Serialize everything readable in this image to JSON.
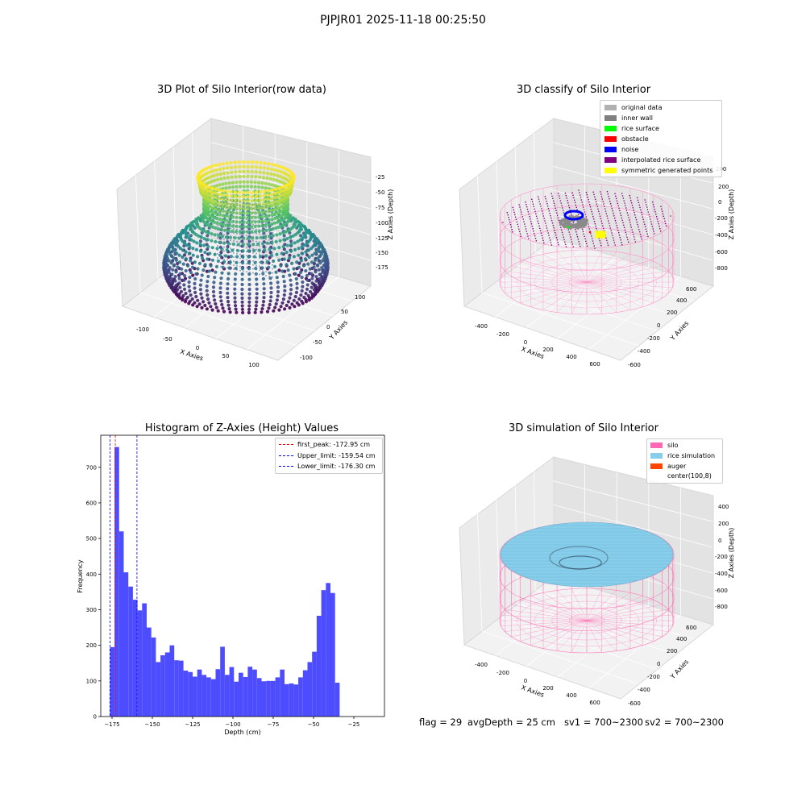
{
  "figure": {
    "title": "PJPJR01 2025-11-18 00:25:50",
    "footer": {
      "flag": "flag = 29",
      "avg_depth": "avgDepth = 25 cm",
      "sv1": "sv1 = 700~2300",
      "sv2": "sv2 = 700~2300"
    }
  },
  "chart_data": [
    {
      "type": "scatter",
      "title": "3D Plot of Silo Interior(row data)",
      "xlabel": "X Axies",
      "ylabel": "Y Axies",
      "zlabel": "Z Axies (Depth)",
      "x_ticks": [
        "-100",
        "-50",
        "0",
        "50",
        "100"
      ],
      "y_ticks": [
        "-100",
        "-50",
        "0",
        "50",
        "100"
      ],
      "z_ticks": [
        "-25",
        "-50",
        "-75",
        "-100",
        "-125",
        "-150",
        "-175"
      ],
      "colormap": "viridis"
    },
    {
      "type": "scatter",
      "title": "3D classify of Silo Interior",
      "xlabel": "X Axies",
      "ylabel": "Y Axies",
      "zlabel": "Z Axies (Depth)",
      "x_ticks": [
        "-400",
        "-200",
        "0",
        "200",
        "400",
        "600"
      ],
      "y_ticks": [
        "-600",
        "-400",
        "-200",
        "0",
        "200",
        "400",
        "600"
      ],
      "z_ticks": [
        "200",
        "0",
        "-200",
        "-400",
        "-600",
        "-800"
      ],
      "legend_position": "top-right",
      "legend": [
        {
          "label": "original data",
          "color": "#b0b0b0"
        },
        {
          "label": "inner wall",
          "color": "#808080"
        },
        {
          "label": "rice surface",
          "color": "#00ff00"
        },
        {
          "label": "obstacle",
          "color": "#ff0000"
        },
        {
          "label": "noise",
          "color": "#0000ff"
        },
        {
          "label": "interpolated rice surface",
          "color": "#800080"
        },
        {
          "label": "symmetric generated points",
          "color": "#ffff00"
        }
      ]
    },
    {
      "type": "bar",
      "title": "Histogram of Z-Axies (Height) Values",
      "xlabel": "Depth (cm)",
      "ylabel": "Frequency",
      "xlim": [
        -182,
        -6
      ],
      "ylim": [
        0,
        790
      ],
      "x_ticks": [
        -175,
        -150,
        -125,
        -100,
        -75,
        -50,
        -25
      ],
      "y_ticks": [
        0,
        100,
        200,
        300,
        400,
        500,
        600,
        700
      ],
      "bar_color": "#4d4dff",
      "bin_start": -176.3,
      "bin_width": 2.85,
      "values": [
        195,
        757,
        520,
        405,
        365,
        328,
        298,
        318,
        250,
        222,
        153,
        172,
        180,
        200,
        158,
        157,
        129,
        125,
        112,
        132,
        117,
        110,
        105,
        133,
        196,
        117,
        139,
        98,
        123,
        111,
        140,
        132,
        108,
        99,
        100,
        100,
        110,
        132,
        91,
        93,
        90,
        110,
        130,
        153,
        182,
        283,
        355,
        375,
        347,
        95
      ],
      "lines": [
        {
          "label": "first_peak: -172.95 cm",
          "x": -172.95,
          "color": "#ff0000"
        },
        {
          "label": "Upper_limit: -159.54 cm",
          "x": -159.54,
          "color": "#0000ff"
        },
        {
          "label": "Lower_limit: -176.30 cm",
          "x": -176.3,
          "color": "#0000ff"
        }
      ],
      "legend_position": "top-right"
    },
    {
      "type": "area",
      "title": "3D simulation of Silo Interior",
      "xlabel": "X Axies",
      "ylabel": "Y Axies",
      "zlabel": "Z Axies (Depth)",
      "x_ticks": [
        "-400",
        "-200",
        "0",
        "200",
        "400",
        "600"
      ],
      "y_ticks": [
        "-600",
        "-400",
        "-200",
        "0",
        "200",
        "400",
        "600"
      ],
      "z_ticks": [
        "400",
        "200",
        "0",
        "-200",
        "-400",
        "-600",
        "-800"
      ],
      "legend_position": "top-right",
      "legend": [
        {
          "label": "silo",
          "color": "#ff69b4"
        },
        {
          "label": "rice simulation",
          "color": "#87ceeb"
        },
        {
          "label": "auger",
          "color": "#ff4500"
        },
        {
          "label": "center(100,8)",
          "color": "#ffffff"
        }
      ]
    }
  ]
}
